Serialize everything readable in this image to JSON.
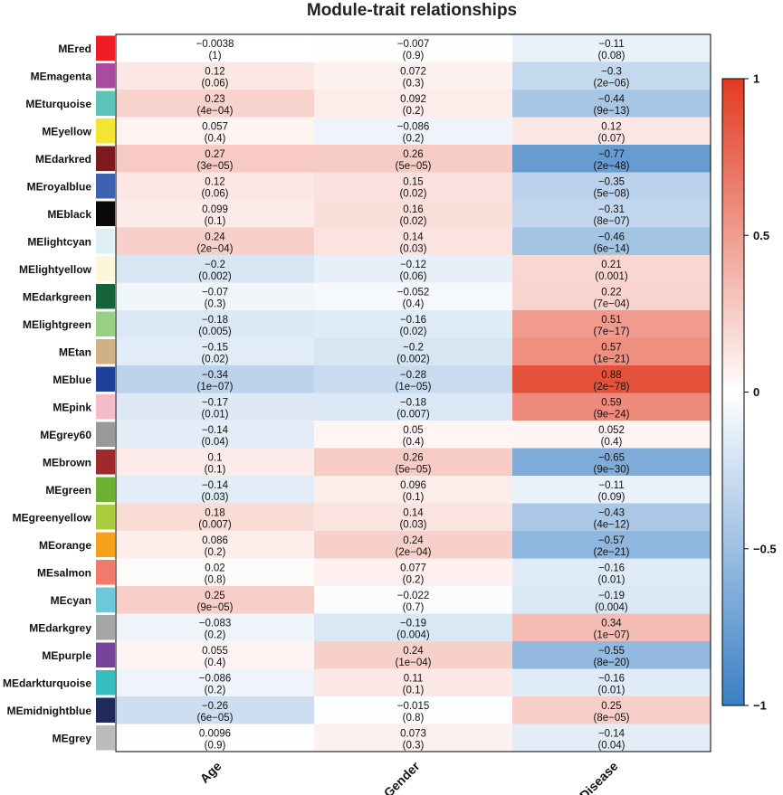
{
  "chart_data": {
    "type": "heatmap",
    "title": "Module-trait relationships",
    "modules": [
      "MEred",
      "MEmagenta",
      "MEturquoise",
      "MEyellow",
      "MEdarkred",
      "MEroyalblue",
      "MEblack",
      "MElightcyan",
      "MElightyellow",
      "MEdarkgreen",
      "MElightgreen",
      "MEtan",
      "MEblue",
      "MEpink",
      "MEgrey60",
      "MEbrown",
      "MEgreen",
      "MEgreenyellow",
      "MEorange",
      "MEsalmon",
      "MEcyan",
      "MEdarkgrey",
      "MEpurple",
      "MEdarkturquoise",
      "MEmidnightblue",
      "MEgrey"
    ],
    "module_colors": [
      "#ee1c24",
      "#a94b9e",
      "#5cc3b8",
      "#f2e632",
      "#7d1a1d",
      "#3c62b1",
      "#0a0a0a",
      "#dff0f3",
      "#fbf8d9",
      "#17643a",
      "#99ce85",
      "#d0b085",
      "#1e3f99",
      "#f3bcc8",
      "#999999",
      "#9e2a2b",
      "#6db133",
      "#a9cc3c",
      "#f6a11c",
      "#f07a6b",
      "#6ec8da",
      "#a6a6a6",
      "#73449a",
      "#36bdc0",
      "#1f2a5a",
      "#bcbcbc"
    ],
    "traits": [
      "Age",
      "Gender",
      "Disease"
    ],
    "correlations": [
      [
        "−0.0038",
        "−0.007",
        "−0.11"
      ],
      [
        "0.12",
        "0.072",
        "−0.3"
      ],
      [
        "0.23",
        "0.092",
        "−0.44"
      ],
      [
        "0.057",
        "−0.086",
        "0.12"
      ],
      [
        "0.27",
        "0.26",
        "−0.77"
      ],
      [
        "0.12",
        "0.15",
        "−0.35"
      ],
      [
        "0.099",
        "0.16",
        "−0.31"
      ],
      [
        "0.24",
        "0.14",
        "−0.46"
      ],
      [
        "−0.2",
        "−0.12",
        "0.21"
      ],
      [
        "−0.07",
        "−0.052",
        "0.22"
      ],
      [
        "−0.18",
        "−0.16",
        "0.51"
      ],
      [
        "−0.15",
        "−0.2",
        "0.57"
      ],
      [
        "−0.34",
        "−0.28",
        "0.88"
      ],
      [
        "−0.17",
        "−0.18",
        "0.59"
      ],
      [
        "−0.14",
        "0.05",
        "0.052"
      ],
      [
        "0.1",
        "0.26",
        "−0.65"
      ],
      [
        "−0.14",
        "0.096",
        "−0.11"
      ],
      [
        "0.18",
        "0.14",
        "−0.43"
      ],
      [
        "0.086",
        "0.24",
        "−0.57"
      ],
      [
        "0.02",
        "0.077",
        "−0.16"
      ],
      [
        "0.25",
        "−0.022",
        "−0.19"
      ],
      [
        "−0.083",
        "−0.19",
        "0.34"
      ],
      [
        "0.055",
        "0.24",
        "−0.55"
      ],
      [
        "−0.086",
        "0.11",
        "−0.16"
      ],
      [
        "−0.26",
        "−0.015",
        "0.25"
      ],
      [
        "0.0096",
        "0.073",
        "−0.14"
      ]
    ],
    "pvalues": [
      [
        "(1)",
        "(0.9)",
        "(0.08)"
      ],
      [
        "(0.06)",
        "(0.3)",
        "(2e−06)"
      ],
      [
        "(4e−04)",
        "(0.2)",
        "(9e−13)"
      ],
      [
        "(0.4)",
        "(0.2)",
        "(0.07)"
      ],
      [
        "(3e−05)",
        "(5e−05)",
        "(2e−48)"
      ],
      [
        "(0.06)",
        "(0.02)",
        "(5e−08)"
      ],
      [
        "(0.1)",
        "(0.02)",
        "(8e−07)"
      ],
      [
        "(2e−04)",
        "(0.03)",
        "(6e−14)"
      ],
      [
        "(0.002)",
        "(0.06)",
        "(0.001)"
      ],
      [
        "(0.3)",
        "(0.4)",
        "(7e−04)"
      ],
      [
        "(0.005)",
        "(0.02)",
        "(7e−17)"
      ],
      [
        "(0.02)",
        "(0.002)",
        "(1e−21)"
      ],
      [
        "(1e−07)",
        "(1e−05)",
        "(2e−78)"
      ],
      [
        "(0.01)",
        "(0.007)",
        "(9e−24)"
      ],
      [
        "(0.04)",
        "(0.4)",
        "(0.4)"
      ],
      [
        "(0.1)",
        "(5e−05)",
        "(9e−30)"
      ],
      [
        "(0.03)",
        "(0.1)",
        "(0.09)"
      ],
      [
        "(0.007)",
        "(0.03)",
        "(4e−12)"
      ],
      [
        "(0.2)",
        "(2e−04)",
        "(2e−21)"
      ],
      [
        "(0.8)",
        "(0.2)",
        "(0.01)"
      ],
      [
        "(9e−05)",
        "(0.7)",
        "(0.004)"
      ],
      [
        "(0.2)",
        "(0.004)",
        "(1e−07)"
      ],
      [
        "(0.4)",
        "(1e−04)",
        "(8e−20)"
      ],
      [
        "(0.2)",
        "(0.1)",
        "(0.01)"
      ],
      [
        "(6e−05)",
        "(0.8)",
        "(8e−05)"
      ],
      [
        "(0.9)",
        "(0.3)",
        "(0.04)"
      ]
    ],
    "colorbar": {
      "range": [
        -1,
        1
      ],
      "ticks": [
        "1",
        "0.5",
        "0",
        "−0.5",
        "−1"
      ],
      "tick_values": [
        1,
        0.5,
        0,
        -0.5,
        -1
      ],
      "colors": {
        "low": "#3a7fc5",
        "mid": "#ffffff",
        "high": "#e23a21"
      }
    }
  }
}
